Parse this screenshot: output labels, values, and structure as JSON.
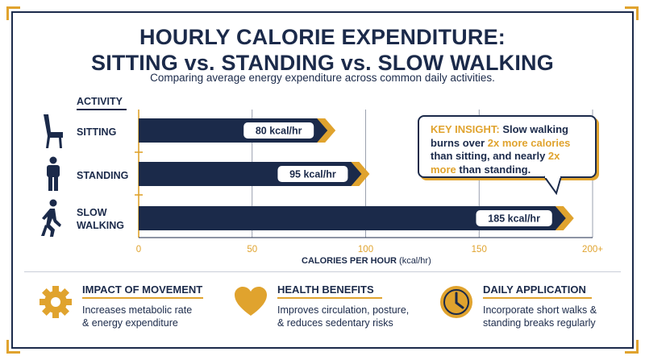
{
  "title_line1": "HOURLY CALORIE EXPENDITURE:",
  "title_line2": "SITTING vs. STANDING vs. SLOW WALKING",
  "subtitle": "Comparing average energy expenditure across common daily activities.",
  "activity_header": "ACTIVITY",
  "insight": {
    "lead": "KEY INSIGHT:",
    "t1": " Slow walking burns over ",
    "em1": "2x more calories",
    "t2": " than sitting, and nearly ",
    "em2": "2x more",
    "t3": " than standing."
  },
  "axis": {
    "title": "CALORIES PER HOUR",
    "unit": "(kcal/hr)"
  },
  "colors": {
    "navy": "#1b2a4a",
    "gold": "#e0a32e"
  },
  "chart_data": {
    "type": "bar",
    "orientation": "horizontal",
    "categories": [
      "SITTING",
      "STANDING",
      "SLOW WALKING"
    ],
    "category_lines": [
      [
        "SITTING"
      ],
      [
        "STANDING"
      ],
      [
        "SLOW",
        "WALKING"
      ]
    ],
    "icons": [
      "chair-icon",
      "standing-person-icon",
      "walking-person-icon"
    ],
    "values": [
      80,
      95,
      185
    ],
    "data_labels": [
      "80 kcal/hr",
      "95 kcal/hr",
      "185 kcal/hr"
    ],
    "xlim": [
      0,
      200
    ],
    "ticks": [
      0,
      50,
      100,
      150,
      200
    ],
    "tick_labels": [
      "0",
      "50",
      "100",
      "150",
      "200+"
    ],
    "xlabel": "CALORIES PER HOUR (kcal/hr)",
    "grid": true
  },
  "cards": [
    {
      "icon": "gear-icon",
      "heading": "IMPACT OF MOVEMENT",
      "line1": "Increases metabolic rate",
      "line2": "& energy expenditure"
    },
    {
      "icon": "heart-icon",
      "heading": "HEALTH BENEFITS",
      "line1": "Improves circulation, posture,",
      "line2": "& reduces sedentary risks"
    },
    {
      "icon": "clock-icon",
      "heading": "DAILY APPLICATION",
      "line1": "Incorporate short walks &",
      "line2": "standing breaks regularly"
    }
  ]
}
